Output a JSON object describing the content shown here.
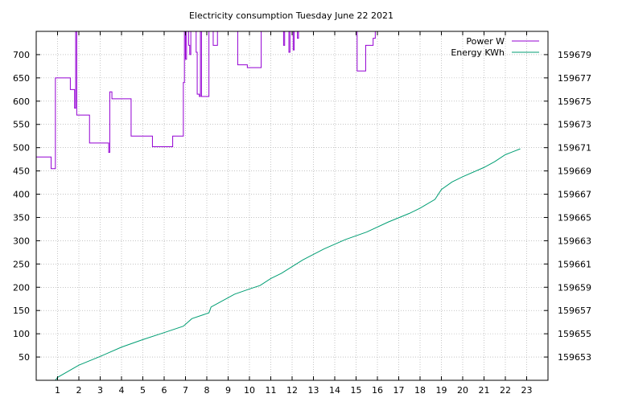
{
  "chart_data": {
    "type": "line",
    "title": "Electricity consumption Tuesday June 22 2021",
    "grid": true,
    "legend_position": "top-right",
    "x": {
      "range": [
        0,
        24
      ],
      "ticks": [
        1,
        2,
        3,
        4,
        5,
        6,
        7,
        8,
        9,
        10,
        11,
        12,
        13,
        14,
        15,
        16,
        17,
        18,
        19,
        20,
        21,
        22,
        23
      ],
      "tick_labels": [
        "1",
        "2",
        "3",
        "4",
        "5",
        "6",
        "7",
        "8",
        "9",
        "10",
        "11",
        "12",
        "13",
        "14",
        "15",
        "16",
        "17",
        "18",
        "19",
        "20",
        "21",
        "22",
        "23"
      ]
    },
    "y_left": {
      "range": [
        0,
        750
      ],
      "ticks": [
        50,
        100,
        150,
        200,
        250,
        300,
        350,
        400,
        450,
        500,
        550,
        600,
        650,
        700
      ],
      "tick_labels": [
        "50",
        "100",
        "150",
        "200",
        "250",
        "300",
        "350",
        "400",
        "450",
        "500",
        "550",
        "600",
        "650",
        "700"
      ]
    },
    "y_right": {
      "range": [
        159651,
        159681
      ],
      "ticks": [
        159653,
        159655,
        159657,
        159659,
        159661,
        159663,
        159665,
        159667,
        159669,
        159671,
        159673,
        159675,
        159677,
        159679
      ],
      "tick_labels": [
        "159653",
        "159655",
        "159657",
        "159659",
        "159661",
        "159663",
        "159665",
        "159667",
        "159669",
        "159671",
        "159673",
        "159675",
        "159677",
        "159679"
      ]
    },
    "series": [
      {
        "name": "Power W",
        "axis": "left",
        "color": "#9400d3",
        "step": true,
        "points": [
          [
            0.0,
            480
          ],
          [
            0.7,
            480
          ],
          [
            0.7,
            455
          ],
          [
            0.9,
            455
          ],
          [
            0.9,
            650
          ],
          [
            1.6,
            650
          ],
          [
            1.6,
            625
          ],
          [
            1.8,
            625
          ],
          [
            1.8,
            585
          ],
          [
            1.85,
            585
          ],
          [
            1.85,
            750
          ],
          [
            1.9,
            750
          ],
          [
            1.9,
            570
          ],
          [
            2.5,
            570
          ],
          [
            2.5,
            510
          ],
          [
            3.4,
            510
          ],
          [
            3.4,
            490
          ],
          [
            3.45,
            490
          ],
          [
            3.45,
            620
          ],
          [
            3.55,
            620
          ],
          [
            3.55,
            605
          ],
          [
            4.45,
            605
          ],
          [
            4.45,
            525
          ],
          [
            5.45,
            525
          ],
          [
            5.45,
            502
          ],
          [
            6.4,
            502
          ],
          [
            6.4,
            525
          ],
          [
            6.9,
            525
          ],
          [
            6.9,
            640
          ],
          [
            6.95,
            640
          ],
          [
            6.95,
            750
          ],
          [
            7.0,
            750
          ],
          [
            7.0,
            690
          ],
          [
            7.05,
            690
          ],
          [
            7.05,
            750
          ],
          [
            7.15,
            750
          ],
          [
            7.15,
            720
          ],
          [
            7.2,
            720
          ],
          [
            7.2,
            700
          ],
          [
            7.25,
            700
          ],
          [
            7.25,
            750
          ],
          [
            7.5,
            750
          ],
          [
            7.5,
            705
          ],
          [
            7.55,
            705
          ],
          [
            7.55,
            615
          ],
          [
            7.65,
            615
          ],
          [
            7.65,
            610
          ],
          [
            7.7,
            610
          ],
          [
            7.7,
            750
          ],
          [
            7.75,
            750
          ],
          [
            7.75,
            610
          ],
          [
            8.1,
            610
          ],
          [
            8.1,
            750
          ],
          [
            8.3,
            750
          ],
          [
            8.3,
            720
          ],
          [
            8.5,
            720
          ],
          [
            8.5,
            750
          ],
          [
            9.45,
            750
          ],
          [
            9.45,
            678
          ],
          [
            9.9,
            678
          ],
          [
            9.9,
            672
          ],
          [
            10.55,
            672
          ],
          [
            10.55,
            750
          ],
          [
            11.6,
            750
          ],
          [
            11.6,
            720
          ],
          [
            11.65,
            720
          ],
          [
            11.65,
            750
          ],
          [
            11.85,
            750
          ],
          [
            11.85,
            705
          ],
          [
            11.9,
            705
          ],
          [
            11.9,
            750
          ],
          [
            12.05,
            750
          ],
          [
            12.05,
            710
          ],
          [
            12.1,
            710
          ],
          [
            12.1,
            750
          ],
          [
            12.25,
            750
          ],
          [
            12.25,
            735
          ],
          [
            12.3,
            735
          ],
          [
            12.3,
            750
          ],
          [
            15.05,
            750
          ],
          [
            15.05,
            665
          ],
          [
            15.45,
            665
          ],
          [
            15.45,
            720
          ],
          [
            15.8,
            720
          ],
          [
            15.8,
            735
          ],
          [
            15.9,
            735
          ],
          [
            15.9,
            750
          ],
          [
            16.0,
            750
          ]
        ]
      },
      {
        "name": "Energy KWh",
        "axis": "right",
        "color": "#009e73",
        "step": false,
        "points": [
          [
            0.9,
            159651
          ],
          [
            1.0,
            159651.25
          ],
          [
            2.0,
            159652.3
          ],
          [
            3.0,
            159653.05
          ],
          [
            4.0,
            159653.85
          ],
          [
            5.0,
            159654.5
          ],
          [
            6.0,
            159655.1
          ],
          [
            6.9,
            159655.65
          ],
          [
            7.3,
            159656.3
          ],
          [
            8.1,
            159656.8
          ],
          [
            8.2,
            159657.3
          ],
          [
            9.3,
            159658.4
          ],
          [
            10.0,
            159658.85
          ],
          [
            10.5,
            159659.15
          ],
          [
            11.0,
            159659.75
          ],
          [
            11.5,
            159660.2
          ],
          [
            12.5,
            159661.35
          ],
          [
            13.5,
            159662.3
          ],
          [
            14.5,
            159663.1
          ],
          [
            15.5,
            159663.75
          ],
          [
            16.5,
            159664.6
          ],
          [
            17.5,
            159665.35
          ],
          [
            18.0,
            159665.8
          ],
          [
            18.7,
            159666.55
          ],
          [
            19.0,
            159667.4
          ],
          [
            19.5,
            159668.05
          ],
          [
            20.0,
            159668.5
          ],
          [
            21.0,
            159669.3
          ],
          [
            21.5,
            159669.8
          ],
          [
            22.0,
            159670.4
          ],
          [
            22.7,
            159670.9
          ]
        ]
      }
    ]
  },
  "colors": {
    "power": "#9400d3",
    "energy": "#009e73",
    "grid": "#a0a0a0",
    "axis": "#000000"
  }
}
